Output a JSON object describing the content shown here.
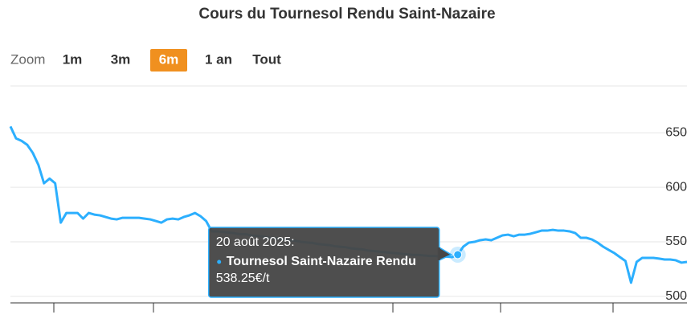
{
  "chart_data": {
    "type": "line",
    "title": "Cours du Tournesol Rendu Saint-Nazaire",
    "range_selector": {
      "label": "Zoom",
      "buttons": [
        "1m",
        "3m",
        "6m",
        "1 an",
        "Tout"
      ],
      "selected": 2,
      "selected_color": "#f0901f"
    },
    "ylim": [
      494,
      693
    ],
    "yticks": [
      500,
      550,
      600,
      650
    ],
    "grid": true,
    "series": [
      {
        "name": "Tournesol Saint-Nazaire Rendu",
        "color": "#2caffe",
        "values": [
          655.9,
          644.9,
          642.6,
          639,
          631.6,
          620.6,
          603.7,
          608,
          603.7,
          567.6,
          576.5,
          576.5,
          576.5,
          571.3,
          576.5,
          575,
          574.3,
          572.8,
          571.3,
          570.6,
          572,
          572,
          572,
          572,
          571.3,
          570.6,
          569.1,
          567.6,
          570.6,
          571.3,
          570.6,
          572.8,
          574.3,
          576.5,
          573.5,
          569.1,
          559.6,
          559.6,
          559,
          558.5,
          558,
          557,
          557,
          556,
          555.5,
          555,
          554,
          553.5,
          553,
          552,
          551.5,
          551,
          550,
          549.5,
          549,
          548,
          547.5,
          547,
          546,
          545.5,
          545,
          544,
          543.5,
          543,
          542,
          541.5,
          541,
          540.5,
          540,
          539.5,
          539,
          538.5,
          538,
          538,
          537.5,
          537,
          537,
          536.5,
          536.5,
          536,
          538.25,
          545.6,
          549.3,
          550,
          551.5,
          552.2,
          551.5,
          553.7,
          555.9,
          556.6,
          555.1,
          556.6,
          556.6,
          557.4,
          558.8,
          560.3,
          560.3,
          561,
          560.3,
          560.3,
          559.6,
          558.1,
          553.7,
          553.7,
          552.2,
          549.3,
          545.6,
          542.6,
          539.7,
          536,
          532.4,
          512.5,
          531.6,
          535.3,
          535.3,
          535.3,
          534.6,
          533.8,
          533.8,
          533.1,
          530.9,
          531.6
        ],
        "value_labels": [
          null,
          null,
          null,
          null,
          null,
          null,
          null,
          null,
          null,
          null,
          null,
          null,
          null,
          null,
          null,
          null,
          null,
          null,
          null,
          null,
          null,
          null,
          null,
          null,
          null,
          null,
          null,
          null,
          null,
          null,
          null,
          null,
          null,
          null,
          null,
          null,
          null,
          null,
          null,
          null,
          null,
          null,
          null,
          null,
          null,
          null,
          null,
          null,
          null,
          null,
          null,
          null,
          null,
          null,
          null,
          null,
          null,
          null,
          null,
          null,
          null,
          null,
          null,
          null,
          null,
          null,
          null,
          null,
          null,
          null,
          null,
          null,
          null,
          null,
          null,
          null,
          null,
          null,
          null,
          null,
          "538.25€/t",
          null,
          null,
          null,
          null,
          null,
          null,
          null,
          null,
          null,
          null,
          null,
          null,
          null,
          null,
          null,
          null,
          null,
          null,
          null,
          null,
          null,
          null,
          null,
          null,
          null,
          null,
          null,
          null,
          null,
          null,
          null,
          null,
          null,
          null,
          null,
          null,
          null,
          null,
          null,
          null,
          null
        ]
      }
    ],
    "tooltip": {
      "title": "20 août 2025:"
    }
  }
}
